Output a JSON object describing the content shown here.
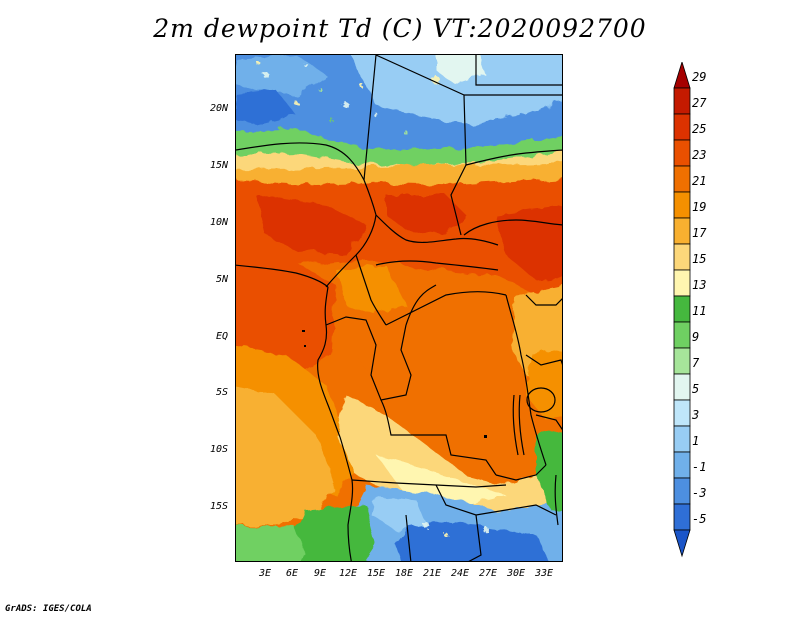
{
  "title": "2m dewpoint Td (C) VT:2020092700",
  "credit": "GrADS: IGES/COLA",
  "lat_labels": [
    "20N",
    "15N",
    "10N",
    "5N",
    "EQ",
    "5S",
    "10S",
    "15S"
  ],
  "lon_labels": [
    "3E",
    "6E",
    "9E",
    "12E",
    "15E",
    "18E",
    "21E",
    "24E",
    "27E",
    "30E",
    "33E"
  ],
  "colorbar": {
    "labels": [
      "29",
      "27",
      "25",
      "23",
      "21",
      "19",
      "17",
      "15",
      "13",
      "11",
      "9",
      "7",
      "5",
      "3",
      "1",
      "-1",
      "-3",
      "-5"
    ],
    "colors": [
      "#a50000",
      "#c41a00",
      "#dc3200",
      "#ea5000",
      "#f07000",
      "#f59000",
      "#f8b030",
      "#fcd77a",
      "#fff6b0",
      "#45b83e",
      "#6fd062",
      "#a6e59a",
      "#e2f6f0",
      "#bfe6fa",
      "#98cdf4",
      "#70b0ea",
      "#4d8fe0",
      "#2f6fd6",
      "#1a55c8"
    ]
  },
  "map": {
    "extent": {
      "lon_min": 0,
      "lon_max": 35,
      "lat_min": -20,
      "lat_max": 25
    },
    "field": "2m dewpoint (C)"
  }
}
